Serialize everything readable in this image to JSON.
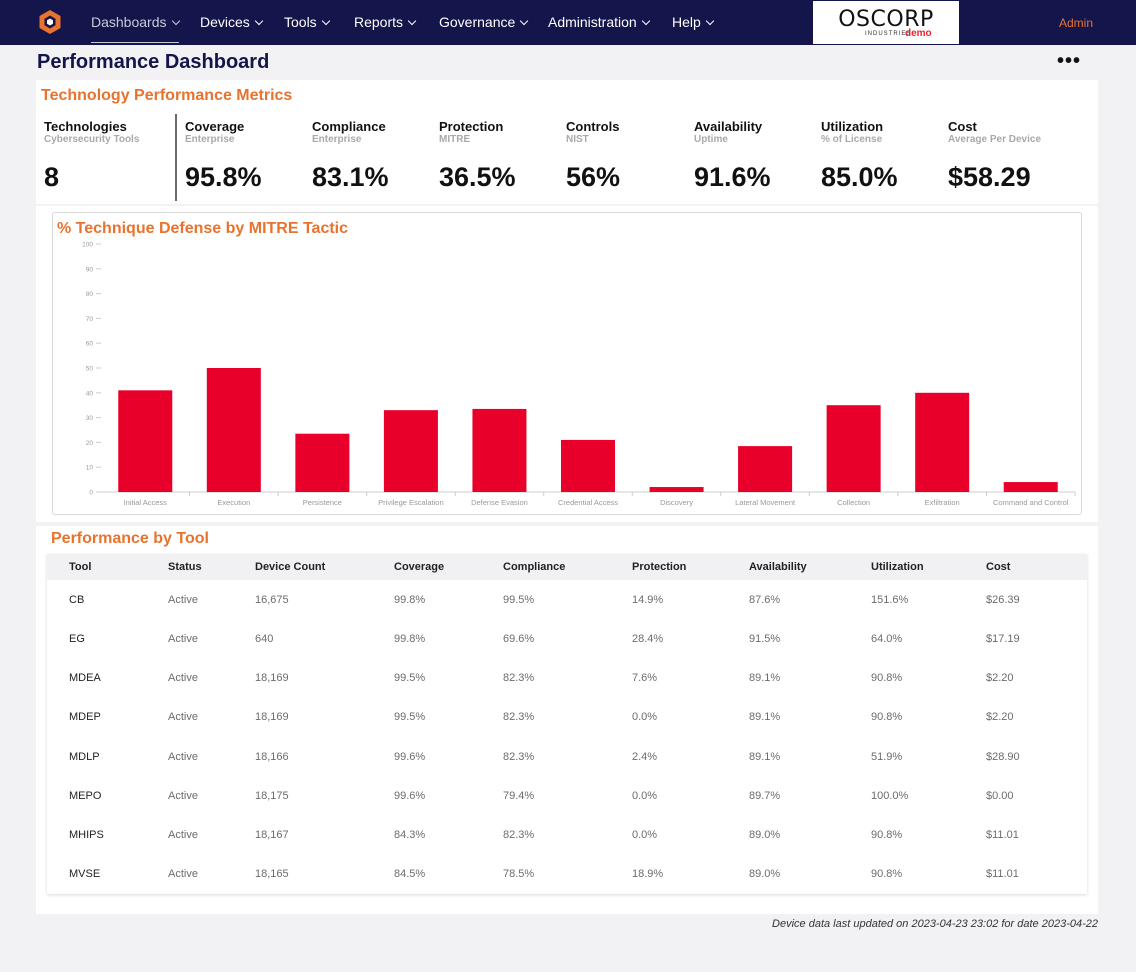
{
  "nav": {
    "items": [
      {
        "label": "Dashboards",
        "active": true
      },
      {
        "label": "Devices",
        "active": false
      },
      {
        "label": "Tools",
        "active": false
      },
      {
        "label": "Reports",
        "active": false
      },
      {
        "label": "Governance",
        "active": false
      },
      {
        "label": "Administration",
        "active": false
      },
      {
        "label": "Help",
        "active": false
      }
    ],
    "brand": {
      "main": "OSCORP",
      "sub": "INDUSTRIES",
      "demo": "demo"
    },
    "user_label": "Admin",
    "logo_icon": "hexagon-logo-icon"
  },
  "colors": {
    "nav_bg": "#14154a",
    "accent": "#e8732e",
    "bar": "#e8002a"
  },
  "page": {
    "title": "Performance Dashboard"
  },
  "metrics": {
    "title": "Technology Performance Metrics",
    "items": [
      {
        "label": "Technologies",
        "sub": "Cybersecurity Tools",
        "value": "8"
      },
      {
        "label": "Coverage",
        "sub": "Enterprise",
        "value": "95.8%"
      },
      {
        "label": "Compliance",
        "sub": "Enterprise",
        "value": "83.1%"
      },
      {
        "label": "Protection",
        "sub": "MITRE",
        "value": "36.5%"
      },
      {
        "label": "Controls",
        "sub": "NIST",
        "value": "56%"
      },
      {
        "label": "Availability",
        "sub": "Uptime",
        "value": "91.6%"
      },
      {
        "label": "Utilization",
        "sub": "% of License",
        "value": "85.0%"
      },
      {
        "label": "Cost",
        "sub": "Average Per Device",
        "value": "$58.29"
      }
    ]
  },
  "chart_data": {
    "type": "bar",
    "title": "% Technique Defense by MITRE Tactic",
    "xlabel": "",
    "ylabel": "",
    "ylim": [
      0,
      100
    ],
    "yticks": [
      0,
      10,
      20,
      30,
      40,
      50,
      60,
      70,
      80,
      90,
      100
    ],
    "grid": false,
    "categories": [
      "Initial Access",
      "Execution",
      "Persistence",
      "Privilege Escalation",
      "Defense Evasion",
      "Credential Access",
      "Discovery",
      "Lateral Movement",
      "Collection",
      "Exfiltration",
      "Command and Control"
    ],
    "values": [
      41,
      50,
      23.5,
      33,
      33.5,
      21,
      2,
      18.5,
      35,
      40,
      4
    ]
  },
  "tools_table": {
    "title": "Performance by Tool",
    "columns": [
      "Tool",
      "Status",
      "Device Count",
      "Coverage",
      "Compliance",
      "Protection",
      "Availability",
      "Utilization",
      "Cost"
    ],
    "rows": [
      [
        "CB",
        "Active",
        "16,675",
        "99.8%",
        "99.5%",
        "14.9%",
        "87.6%",
        "151.6%",
        "$26.39"
      ],
      [
        "EG",
        "Active",
        "640",
        "99.8%",
        "69.6%",
        "28.4%",
        "91.5%",
        "64.0%",
        "$17.19"
      ],
      [
        "MDEA",
        "Active",
        "18,169",
        "99.5%",
        "82.3%",
        "7.6%",
        "89.1%",
        "90.8%",
        "$2.20"
      ],
      [
        "MDEP",
        "Active",
        "18,169",
        "99.5%",
        "82.3%",
        "0.0%",
        "89.1%",
        "90.8%",
        "$2.20"
      ],
      [
        "MDLP",
        "Active",
        "18,166",
        "99.6%",
        "82.3%",
        "2.4%",
        "89.1%",
        "51.9%",
        "$28.90"
      ],
      [
        "MEPO",
        "Active",
        "18,175",
        "99.6%",
        "79.4%",
        "0.0%",
        "89.7%",
        "100.0%",
        "$0.00"
      ],
      [
        "MHIPS",
        "Active",
        "18,167",
        "84.3%",
        "82.3%",
        "0.0%",
        "89.0%",
        "90.8%",
        "$11.01"
      ],
      [
        "MVSE",
        "Active",
        "18,165",
        "84.5%",
        "78.5%",
        "18.9%",
        "89.0%",
        "90.8%",
        "$11.01"
      ]
    ]
  },
  "footer": {
    "note": "Device data last updated on 2023-04-23 23:02 for date 2023-04-22"
  }
}
